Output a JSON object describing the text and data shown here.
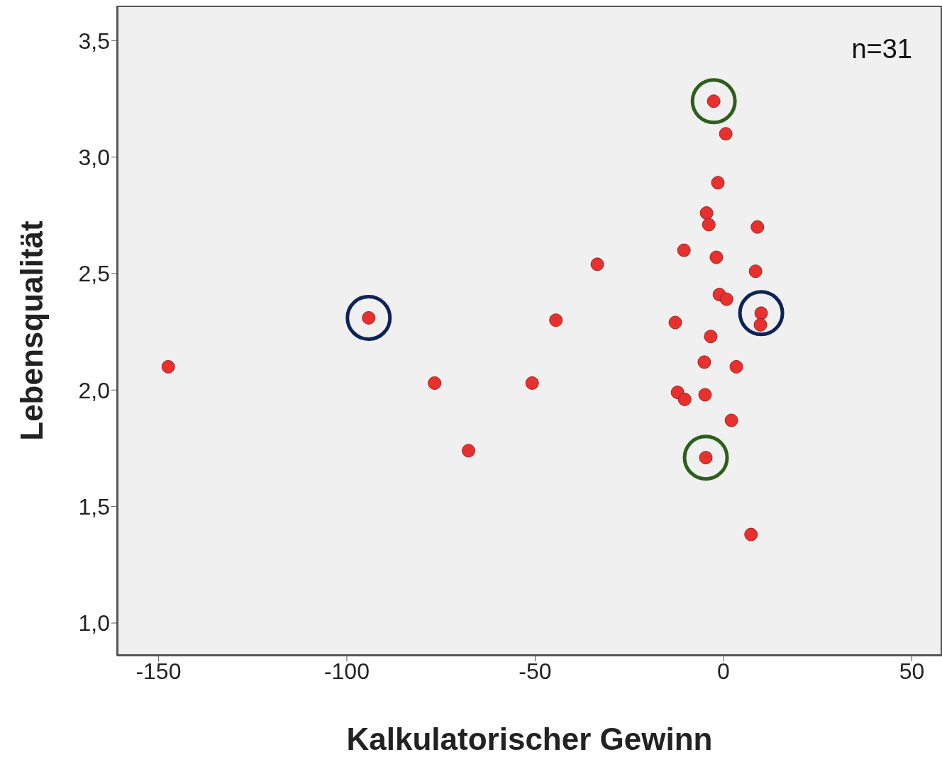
{
  "chart_data": {
    "type": "scatter",
    "xlabel": "Kalkulatorischer Gewinn",
    "ylabel": "Lebensqualität",
    "annotations": [
      "n=31"
    ],
    "x": [
      -147.4,
      -94.2,
      -76.7,
      -67.7,
      -50.8,
      -44.5,
      -33.5,
      -10.5,
      -12.8,
      -12.2,
      -10.3,
      -4.9,
      -5.1,
      -4.7,
      -4.5,
      -3.9,
      -3.4,
      -2.6,
      -1.9,
      -1.5,
      -1.1,
      0.8,
      0.6,
      2.1,
      3.4,
      7.3,
      8.5,
      9.0,
      10.0,
      9.8
    ],
    "values": [
      2.1,
      2.31,
      2.03,
      1.74,
      2.03,
      2.3,
      2.54,
      2.6,
      2.29,
      1.99,
      1.96,
      1.98,
      2.12,
      1.71,
      2.76,
      2.71,
      2.23,
      3.24,
      2.57,
      2.89,
      2.41,
      2.39,
      3.1,
      1.87,
      2.1,
      1.38,
      2.51,
      2.7,
      2.33,
      2.28
    ],
    "color": "#e8312f",
    "marker": "circle",
    "grid": false,
    "legend": false,
    "xlim": [
      -161,
      58
    ],
    "xticks": [
      -150,
      -100,
      -50,
      0,
      50
    ],
    "ylim": [
      0.86,
      3.65
    ],
    "yticks": [
      {
        "value": 1.0,
        "label": "1,0"
      },
      {
        "value": 1.5,
        "label": "1,5"
      },
      {
        "value": 2.0,
        "label": "2,0"
      },
      {
        "value": 2.5,
        "label": "2,5"
      },
      {
        "value": 3.0,
        "label": "3,0"
      },
      {
        "value": 3.5,
        "label": "3,5"
      }
    ]
  }
}
